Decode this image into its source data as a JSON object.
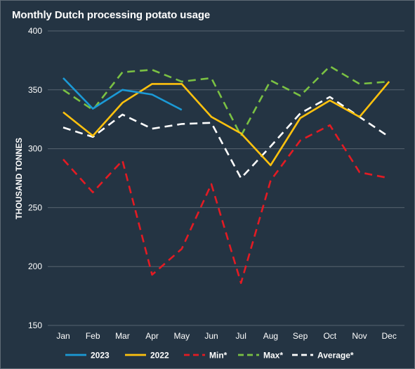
{
  "chart_data": {
    "type": "line",
    "title": "Monthly Dutch processing potato usage",
    "xlabel": "",
    "ylabel": "THOUSAND TONNES",
    "ylim": [
      150,
      400
    ],
    "yticks": [
      150,
      200,
      250,
      300,
      350,
      400
    ],
    "categories": [
      "Jan",
      "Feb",
      "Mar",
      "Apr",
      "May",
      "Jun",
      "Jul",
      "Aug",
      "Sep",
      "Oct",
      "Nov",
      "Dec"
    ],
    "grid": "horizontal",
    "legend_position": "bottom",
    "series": [
      {
        "name": "2023",
        "color": "#1b9ad6",
        "dash": "solid",
        "values": [
          360,
          334,
          350,
          346,
          333,
          null,
          null,
          null,
          null,
          null,
          null,
          null
        ]
      },
      {
        "name": "2022",
        "color": "#ffc20e",
        "dash": "solid",
        "values": [
          331,
          311,
          339,
          355,
          355,
          327,
          313,
          286,
          326,
          341,
          327,
          357
        ]
      },
      {
        "name": "Min*",
        "color": "#e31b23",
        "dash": "dashed",
        "values": [
          291,
          263,
          290,
          193,
          215,
          270,
          186,
          273,
          307,
          320,
          280,
          275
        ]
      },
      {
        "name": "Max*",
        "color": "#7ac143",
        "dash": "dashed",
        "values": [
          350,
          333,
          365,
          367,
          357,
          360,
          311,
          358,
          345,
          370,
          355,
          357
        ]
      },
      {
        "name": "Average*",
        "color": "#ffffff",
        "dash": "dashed",
        "values": [
          318,
          310,
          329,
          317,
          321,
          322,
          275,
          302,
          330,
          344,
          327,
          310
        ]
      }
    ]
  }
}
